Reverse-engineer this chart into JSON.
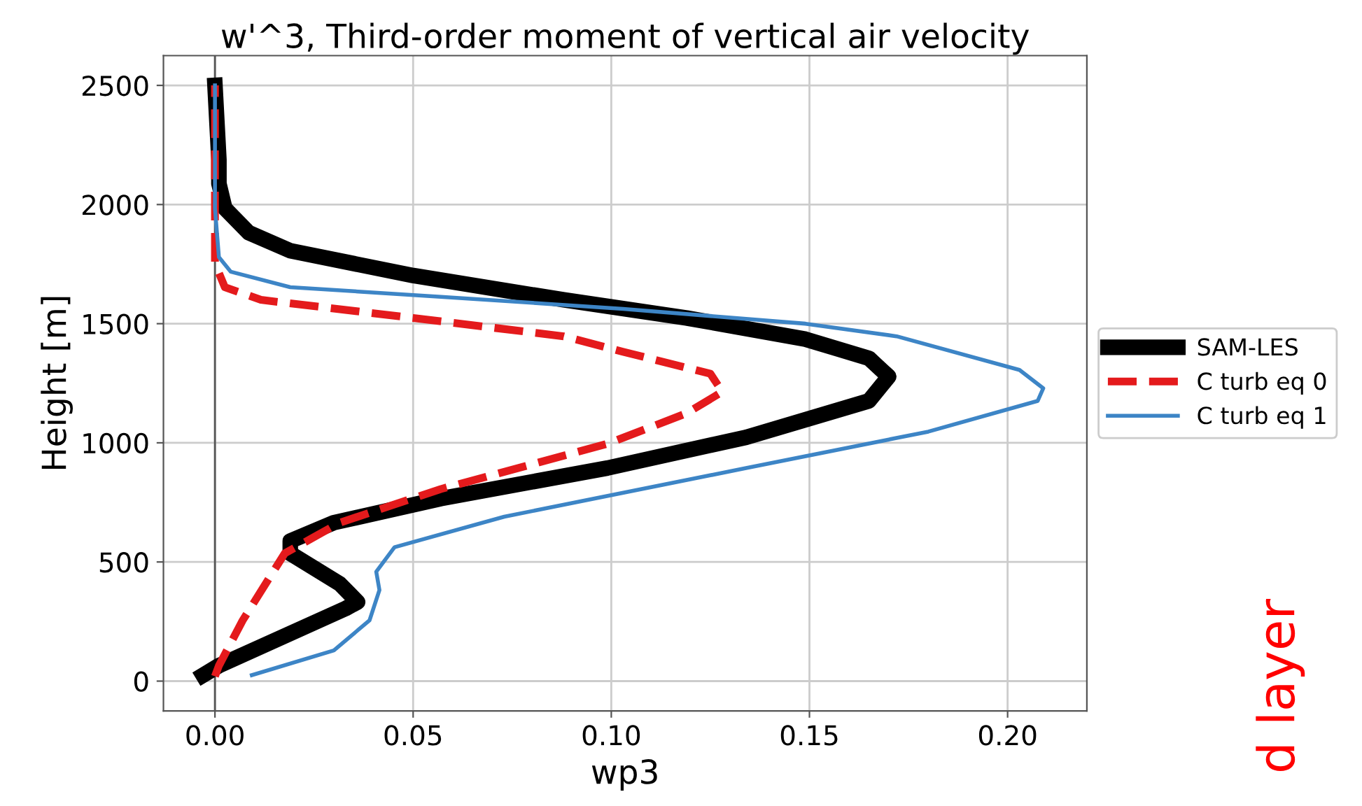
{
  "chart_data": {
    "type": "line",
    "title": "w'^3, Third-order moment of vertical air velocity",
    "xlabel": "wp3",
    "ylabel": "Height [m]",
    "xlim": [
      -0.013,
      0.22
    ],
    "xticks": [
      {
        "value": 0,
        "label": "0.00"
      },
      {
        "value": 0.05,
        "label": "0.05"
      },
      {
        "value": 0.1,
        "label": "0.10"
      },
      {
        "value": 0.15,
        "label": "0.15"
      },
      {
        "value": 0.2,
        "label": "0.20"
      }
    ],
    "ylim": [
      -125,
      2625
    ],
    "yticks": [
      0,
      500,
      1000,
      1500,
      2000,
      2500
    ],
    "grid": true,
    "legend": "right",
    "ref_lines": [
      {
        "axis": "x",
        "value": 0,
        "color": "#555555"
      }
    ],
    "series": [
      {
        "name": "SAM-LES",
        "color": "#000000",
        "line_style": "solid",
        "x": [
          -0.003,
          0.001,
          0.033,
          0.036,
          0.0315,
          0.019,
          0.019,
          0.03,
          0.057,
          0.099,
          0.134,
          0.165,
          0.17,
          0.165,
          0.149,
          0.119,
          0.088,
          0.05,
          0.019,
          0.0085,
          0.0025,
          0.001,
          0.001,
          0
        ],
        "values": [
          25,
          65,
          305,
          332,
          408,
          536,
          588,
          665,
          766,
          894,
          1023,
          1176,
          1278,
          1355,
          1435,
          1524,
          1600,
          1702,
          1806,
          1882,
          1984,
          2088,
          2188,
          2500
        ]
      },
      {
        "name": "C turb eq 0",
        "color": "#e41a1c",
        "line_style": "dashed",
        "x": [
          0,
          0.001,
          0.007,
          0.0176,
          0.0315,
          0.057,
          0.099,
          0.119,
          0.128,
          0.125,
          0.103,
          0.088,
          0.05,
          0.0116,
          0.0025,
          0,
          0
        ],
        "values": [
          20,
          65,
          255,
          536,
          665,
          806,
          996,
          1124,
          1214,
          1290,
          1382,
          1447,
          1524,
          1600,
          1653,
          1753,
          2500
        ]
      },
      {
        "name": "C turb eq 1",
        "color": "#3d85c6",
        "line_style": "solid",
        "x": [
          0.0093,
          0.03,
          0.039,
          0.0415,
          0.0407,
          0.0453,
          0.073,
          0.134,
          0.18,
          0.2076,
          0.209,
          0.203,
          0.172,
          0.149,
          0.103,
          0.057,
          0.019,
          0.004,
          0.001,
          0,
          0
        ],
        "values": [
          25,
          129,
          255,
          382,
          459,
          562,
          690,
          894,
          1047,
          1176,
          1229,
          1306,
          1447,
          1500,
          1562,
          1613,
          1653,
          1718,
          1779,
          1984,
          2500
        ]
      }
    ],
    "annotations": [
      "d layer"
    ]
  }
}
